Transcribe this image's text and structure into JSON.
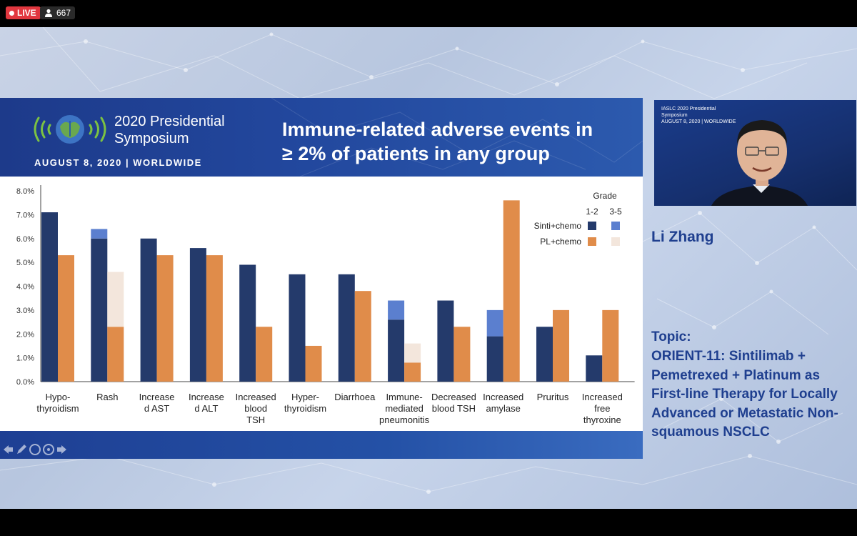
{
  "stream": {
    "live_label": "LIVE",
    "viewer_count": "667"
  },
  "slide": {
    "symposium_title_line1": "2020 Presidential",
    "symposium_title_line2": "Symposium",
    "symposium_date": "AUGUST 8, 2020 | WORLDWIDE",
    "title_line1": "Immune-related adverse events in",
    "title_line2": "≥ 2% of patients in any group"
  },
  "chart_data": {
    "type": "bar",
    "stacked": true,
    "ylim": [
      0,
      8
    ],
    "yticks": [
      "0.0%",
      "1.0%",
      "2.0%",
      "3.0%",
      "4.0%",
      "5.0%",
      "6.0%",
      "7.0%",
      "8.0%"
    ],
    "categories": [
      [
        "Hypo-",
        "thyroidism"
      ],
      [
        "Rash"
      ],
      [
        "Increase",
        "d AST"
      ],
      [
        "Increase",
        "d ALT"
      ],
      [
        "Increased",
        "blood",
        "TSH"
      ],
      [
        "Hyper-",
        "thyroidism"
      ],
      [
        "Diarrhoea"
      ],
      [
        "Immune-",
        "mediated",
        "pneumonitis"
      ],
      [
        "Decreased",
        "blood TSH"
      ],
      [
        "Increased",
        "amylase"
      ],
      [
        "Pruritus"
      ],
      [
        "Increased",
        "free",
        "thyroxine"
      ]
    ],
    "series": [
      {
        "group": "Sinti+chemo",
        "grade": "1-2",
        "color": "#243a6b",
        "values": [
          7.1,
          6.0,
          6.0,
          5.6,
          4.9,
          4.5,
          4.5,
          2.6,
          3.4,
          1.9,
          2.3,
          1.1
        ]
      },
      {
        "group": "Sinti+chemo",
        "grade": "3-5",
        "color": "#5b7fcf",
        "values": [
          0.0,
          0.4,
          0.0,
          0.0,
          0.0,
          0.0,
          0.0,
          0.8,
          0.0,
          1.1,
          0.0,
          0.0
        ]
      },
      {
        "group": "PL+chemo",
        "grade": "1-2",
        "color": "#e08c4a",
        "values": [
          5.3,
          2.3,
          5.3,
          5.3,
          2.3,
          1.5,
          3.8,
          0.8,
          2.3,
          7.6,
          3.0,
          3.0
        ]
      },
      {
        "group": "PL+chemo",
        "grade": "3-5",
        "color": "#f3e6dc",
        "values": [
          0.0,
          2.3,
          0.0,
          0.0,
          0.0,
          0.0,
          0.0,
          0.8,
          0.0,
          0.0,
          0.0,
          0.0
        ]
      }
    ],
    "legend": {
      "title": "Grade",
      "col1": "1-2",
      "col2": "3-5",
      "rows": [
        "Sinti+chemo",
        "PL+chemo"
      ],
      "position": "top-right"
    }
  },
  "speaker": {
    "name": "Li Zhang",
    "video_header_line1": "IASLC",
    "video_header_line2": "2020 Presidential",
    "video_header_line3": "Symposium",
    "video_header_line4": "AUGUST 8, 2020 | WORLDWIDE"
  },
  "topic": {
    "label": "Topic:",
    "text": "ORIENT-11: Sintilimab + Pemetrexed + Platinum as First-line Therapy for Locally Advanced or Metastatic Non-squamous NSCLC"
  }
}
